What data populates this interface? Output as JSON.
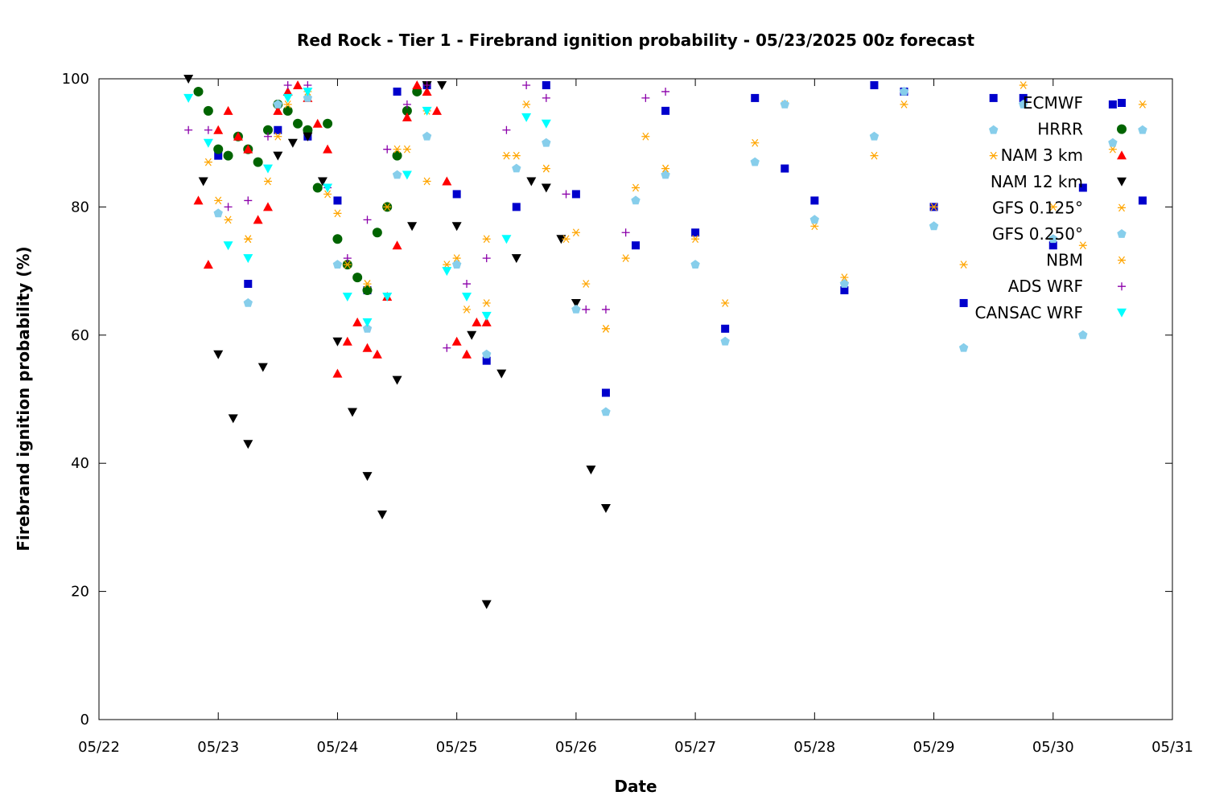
{
  "chart_data": {
    "type": "scatter",
    "title": "Red Rock - Tier 1 - Firebrand ignition probability - 05/23/2025 00z forecast",
    "xlabel": "Date",
    "ylabel": "Firebrand ignition probability (%)",
    "xlim": [
      "2025-05-22T00:00",
      "2025-05-31T00:00"
    ],
    "ylim": [
      0,
      100
    ],
    "x_ticks": [
      "05/22",
      "05/23",
      "05/24",
      "05/25",
      "05/26",
      "05/27",
      "05/28",
      "05/29",
      "05/30",
      "05/31"
    ],
    "y_ticks": [
      "0",
      "20",
      "40",
      "60",
      "80",
      "100"
    ],
    "grid": false,
    "legend_position": "top-right",
    "series": [
      {
        "name": "ECMWF",
        "color": "#0000cc",
        "marker": "square",
        "x": [
          "2025-05-23T00:00",
          "2025-05-23T06:00",
          "2025-05-23T12:00",
          "2025-05-23T18:00",
          "2025-05-24T00:00",
          "2025-05-24T06:00",
          "2025-05-24T12:00",
          "2025-05-24T18:00",
          "2025-05-25T00:00",
          "2025-05-25T06:00",
          "2025-05-25T12:00",
          "2025-05-25T18:00",
          "2025-05-26T00:00",
          "2025-05-26T06:00",
          "2025-05-26T12:00",
          "2025-05-26T18:00",
          "2025-05-27T00:00",
          "2025-05-27T06:00",
          "2025-05-27T12:00",
          "2025-05-27T18:00",
          "2025-05-28T00:00",
          "2025-05-28T06:00",
          "2025-05-28T12:00",
          "2025-05-28T18:00",
          "2025-05-29T00:00",
          "2025-05-29T06:00",
          "2025-05-29T12:00",
          "2025-05-29T18:00",
          "2025-05-30T00:00",
          "2025-05-30T06:00",
          "2025-05-30T12:00",
          "2025-05-30T18:00"
        ],
        "y": [
          88,
          68,
          92,
          91,
          81,
          67,
          98,
          99,
          82,
          56,
          80,
          99,
          82,
          51,
          74,
          95,
          76,
          61,
          97,
          86,
          81,
          67,
          99,
          98,
          80,
          65,
          97,
          97,
          74,
          83,
          96,
          81
        ]
      },
      {
        "name": "HRRR",
        "color": "#006400",
        "marker": "circle",
        "x": [
          "2025-05-22T20:00",
          "2025-05-22T22:00",
          "2025-05-23T00:00",
          "2025-05-23T02:00",
          "2025-05-23T04:00",
          "2025-05-23T06:00",
          "2025-05-23T08:00",
          "2025-05-23T10:00",
          "2025-05-23T12:00",
          "2025-05-23T14:00",
          "2025-05-23T16:00",
          "2025-05-23T18:00",
          "2025-05-23T20:00",
          "2025-05-23T22:00",
          "2025-05-24T00:00",
          "2025-05-24T02:00",
          "2025-05-24T04:00",
          "2025-05-24T06:00",
          "2025-05-24T08:00",
          "2025-05-24T10:00",
          "2025-05-24T12:00",
          "2025-05-24T14:00",
          "2025-05-24T16:00"
        ],
        "y": [
          98,
          95,
          89,
          88,
          91,
          89,
          87,
          92,
          96,
          95,
          93,
          92,
          83,
          93,
          75,
          71,
          69,
          67,
          76,
          80,
          88,
          95,
          98
        ]
      },
      {
        "name": "NAM 3 km",
        "color": "#ff0000",
        "marker": "triangle-up",
        "x": [
          "2025-05-22T20:00",
          "2025-05-22T22:00",
          "2025-05-23T00:00",
          "2025-05-23T02:00",
          "2025-05-23T04:00",
          "2025-05-23T06:00",
          "2025-05-23T08:00",
          "2025-05-23T10:00",
          "2025-05-23T12:00",
          "2025-05-23T14:00",
          "2025-05-23T16:00",
          "2025-05-23T18:00",
          "2025-05-23T20:00",
          "2025-05-23T22:00",
          "2025-05-24T00:00",
          "2025-05-24T02:00",
          "2025-05-24T04:00",
          "2025-05-24T06:00",
          "2025-05-24T08:00",
          "2025-05-24T10:00",
          "2025-05-24T12:00",
          "2025-05-24T14:00",
          "2025-05-24T16:00",
          "2025-05-24T18:00",
          "2025-05-24T20:00",
          "2025-05-24T22:00",
          "2025-05-25T00:00",
          "2025-05-25T02:00",
          "2025-05-25T04:00",
          "2025-05-25T06:00"
        ],
        "y": [
          81,
          71,
          92,
          95,
          91,
          89,
          78,
          80,
          95,
          98,
          99,
          97,
          93,
          89,
          54,
          59,
          62,
          58,
          57,
          66,
          74,
          94,
          99,
          98,
          95,
          84,
          59,
          57,
          62,
          62
        ]
      },
      {
        "name": "NAM 12 km",
        "color": "#000000",
        "marker": "triangle-down",
        "x": [
          "2025-05-22T18:00",
          "2025-05-22T21:00",
          "2025-05-23T00:00",
          "2025-05-23T03:00",
          "2025-05-23T06:00",
          "2025-05-23T09:00",
          "2025-05-23T12:00",
          "2025-05-23T15:00",
          "2025-05-23T18:00",
          "2025-05-23T21:00",
          "2025-05-24T00:00",
          "2025-05-24T03:00",
          "2025-05-24T06:00",
          "2025-05-24T09:00",
          "2025-05-24T12:00",
          "2025-05-24T15:00",
          "2025-05-24T18:00",
          "2025-05-24T21:00",
          "2025-05-25T00:00",
          "2025-05-25T03:00",
          "2025-05-25T06:00",
          "2025-05-25T09:00",
          "2025-05-25T12:00",
          "2025-05-25T15:00",
          "2025-05-25T18:00",
          "2025-05-25T21:00",
          "2025-05-26T00:00",
          "2025-05-26T03:00",
          "2025-05-26T06:00"
        ],
        "y": [
          100,
          84,
          57,
          47,
          43,
          55,
          88,
          90,
          91,
          84,
          59,
          48,
          38,
          32,
          53,
          77,
          99,
          99,
          77,
          60,
          18,
          54,
          72,
          84,
          83,
          75,
          65,
          39,
          33
        ]
      },
      {
        "name": "GFS 0.125°",
        "color": "#ffa500",
        "marker": "asterisk",
        "x": [
          "2025-05-23T00:00",
          "2025-05-23T06:00",
          "2025-05-23T12:00",
          "2025-05-23T18:00",
          "2025-05-24T00:00",
          "2025-05-24T06:00",
          "2025-05-24T12:00",
          "2025-05-24T18:00",
          "2025-05-25T00:00",
          "2025-05-25T06:00",
          "2025-05-25T12:00",
          "2025-05-25T18:00",
          "2025-05-26T00:00",
          "2025-05-26T06:00",
          "2025-05-26T12:00",
          "2025-05-26T18:00",
          "2025-05-27T00:00",
          "2025-05-27T06:00",
          "2025-05-27T12:00",
          "2025-05-27T18:00",
          "2025-05-28T00:00",
          "2025-05-28T06:00",
          "2025-05-28T12:00",
          "2025-05-28T18:00",
          "2025-05-29T00:00",
          "2025-05-29T06:00",
          "2025-05-29T12:00",
          "2025-05-29T18:00",
          "2025-05-30T00:00",
          "2025-05-30T06:00",
          "2025-05-30T12:00",
          "2025-05-30T18:00"
        ],
        "y": [
          81,
          75,
          91,
          97,
          79,
          68,
          89,
          84,
          72,
          65,
          88,
          86,
          76,
          61,
          83,
          86,
          75,
          65,
          90,
          96,
          77,
          69,
          88,
          96,
          80,
          71,
          88,
          99,
          80,
          74,
          89,
          96
        ]
      },
      {
        "name": "GFS 0.250°",
        "color": "#87ceeb",
        "marker": "pentagon",
        "x": [
          "2025-05-23T00:00",
          "2025-05-23T06:00",
          "2025-05-23T12:00",
          "2025-05-23T18:00",
          "2025-05-24T00:00",
          "2025-05-24T06:00",
          "2025-05-24T12:00",
          "2025-05-24T18:00",
          "2025-05-25T00:00",
          "2025-05-25T06:00",
          "2025-05-25T12:00",
          "2025-05-25T18:00",
          "2025-05-26T00:00",
          "2025-05-26T06:00",
          "2025-05-26T12:00",
          "2025-05-26T18:00",
          "2025-05-27T00:00",
          "2025-05-27T06:00",
          "2025-05-27T12:00",
          "2025-05-27T18:00",
          "2025-05-28T00:00",
          "2025-05-28T06:00",
          "2025-05-28T12:00",
          "2025-05-28T18:00",
          "2025-05-29T00:00",
          "2025-05-29T06:00",
          "2025-05-29T12:00",
          "2025-05-29T18:00",
          "2025-05-30T00:00",
          "2025-05-30T06:00",
          "2025-05-30T12:00",
          "2025-05-30T18:00"
        ],
        "y": [
          79,
          65,
          96,
          97,
          71,
          61,
          85,
          91,
          71,
          57,
          86,
          90,
          64,
          48,
          81,
          85,
          71,
          59,
          87,
          96,
          78,
          68,
          91,
          98,
          77,
          58,
          92,
          96,
          75,
          60,
          90,
          92
        ]
      },
      {
        "name": "NBM",
        "color": "#ffa500",
        "marker": "asterisk",
        "x": [
          "2025-05-22T22:00",
          "2025-05-23T02:00",
          "2025-05-23T06:00",
          "2025-05-23T10:00",
          "2025-05-23T14:00",
          "2025-05-23T18:00",
          "2025-05-23T22:00",
          "2025-05-24T02:00",
          "2025-05-24T06:00",
          "2025-05-24T10:00",
          "2025-05-24T14:00",
          "2025-05-24T18:00",
          "2025-05-24T22:00",
          "2025-05-25T02:00",
          "2025-05-25T06:00",
          "2025-05-25T10:00",
          "2025-05-25T14:00",
          "2025-05-25T18:00",
          "2025-05-25T22:00",
          "2025-05-26T02:00",
          "2025-05-26T06:00",
          "2025-05-26T10:00",
          "2025-05-26T14:00",
          "2025-05-26T18:00"
        ],
        "y": [
          87,
          78,
          75,
          84,
          96,
          98,
          82,
          71,
          68,
          80,
          89,
          95,
          71,
          64,
          75,
          88,
          96,
          86,
          75,
          68,
          61,
          72,
          91,
          86
        ]
      },
      {
        "name": "ADS WRF",
        "color": "#8b00aa",
        "marker": "plus",
        "x": [
          "2025-05-22T18:00",
          "2025-05-22T22:00",
          "2025-05-23T02:00",
          "2025-05-23T06:00",
          "2025-05-23T10:00",
          "2025-05-23T14:00",
          "2025-05-23T18:00",
          "2025-05-23T22:00",
          "2025-05-24T02:00",
          "2025-05-24T06:00",
          "2025-05-24T10:00",
          "2025-05-24T14:00",
          "2025-05-24T18:00",
          "2025-05-24T22:00",
          "2025-05-25T02:00",
          "2025-05-25T06:00",
          "2025-05-25T10:00",
          "2025-05-25T14:00",
          "2025-05-25T18:00",
          "2025-05-25T22:00",
          "2025-05-26T02:00",
          "2025-05-26T06:00",
          "2025-05-26T10:00",
          "2025-05-26T14:00",
          "2025-05-26T18:00"
        ],
        "y": [
          92,
          92,
          80,
          81,
          91,
          99,
          99,
          83,
          72,
          78,
          89,
          96,
          99,
          58,
          68,
          72,
          92,
          99,
          97,
          82,
          64,
          64,
          76,
          97,
          98
        ]
      },
      {
        "name": "CANSAC WRF",
        "color": "#00ffff",
        "marker": "triangle-down",
        "x": [
          "2025-05-22T18:00",
          "2025-05-22T22:00",
          "2025-05-23T02:00",
          "2025-05-23T06:00",
          "2025-05-23T10:00",
          "2025-05-23T14:00",
          "2025-05-23T18:00",
          "2025-05-23T22:00",
          "2025-05-24T02:00",
          "2025-05-24T06:00",
          "2025-05-24T10:00",
          "2025-05-24T14:00",
          "2025-05-24T18:00",
          "2025-05-24T22:00",
          "2025-05-25T02:00",
          "2025-05-25T06:00",
          "2025-05-25T10:00",
          "2025-05-25T14:00",
          "2025-05-25T18:00"
        ],
        "y": [
          97,
          90,
          74,
          72,
          86,
          97,
          98,
          83,
          66,
          62,
          66,
          85,
          95,
          70,
          66,
          63,
          75,
          94,
          93
        ]
      }
    ]
  }
}
